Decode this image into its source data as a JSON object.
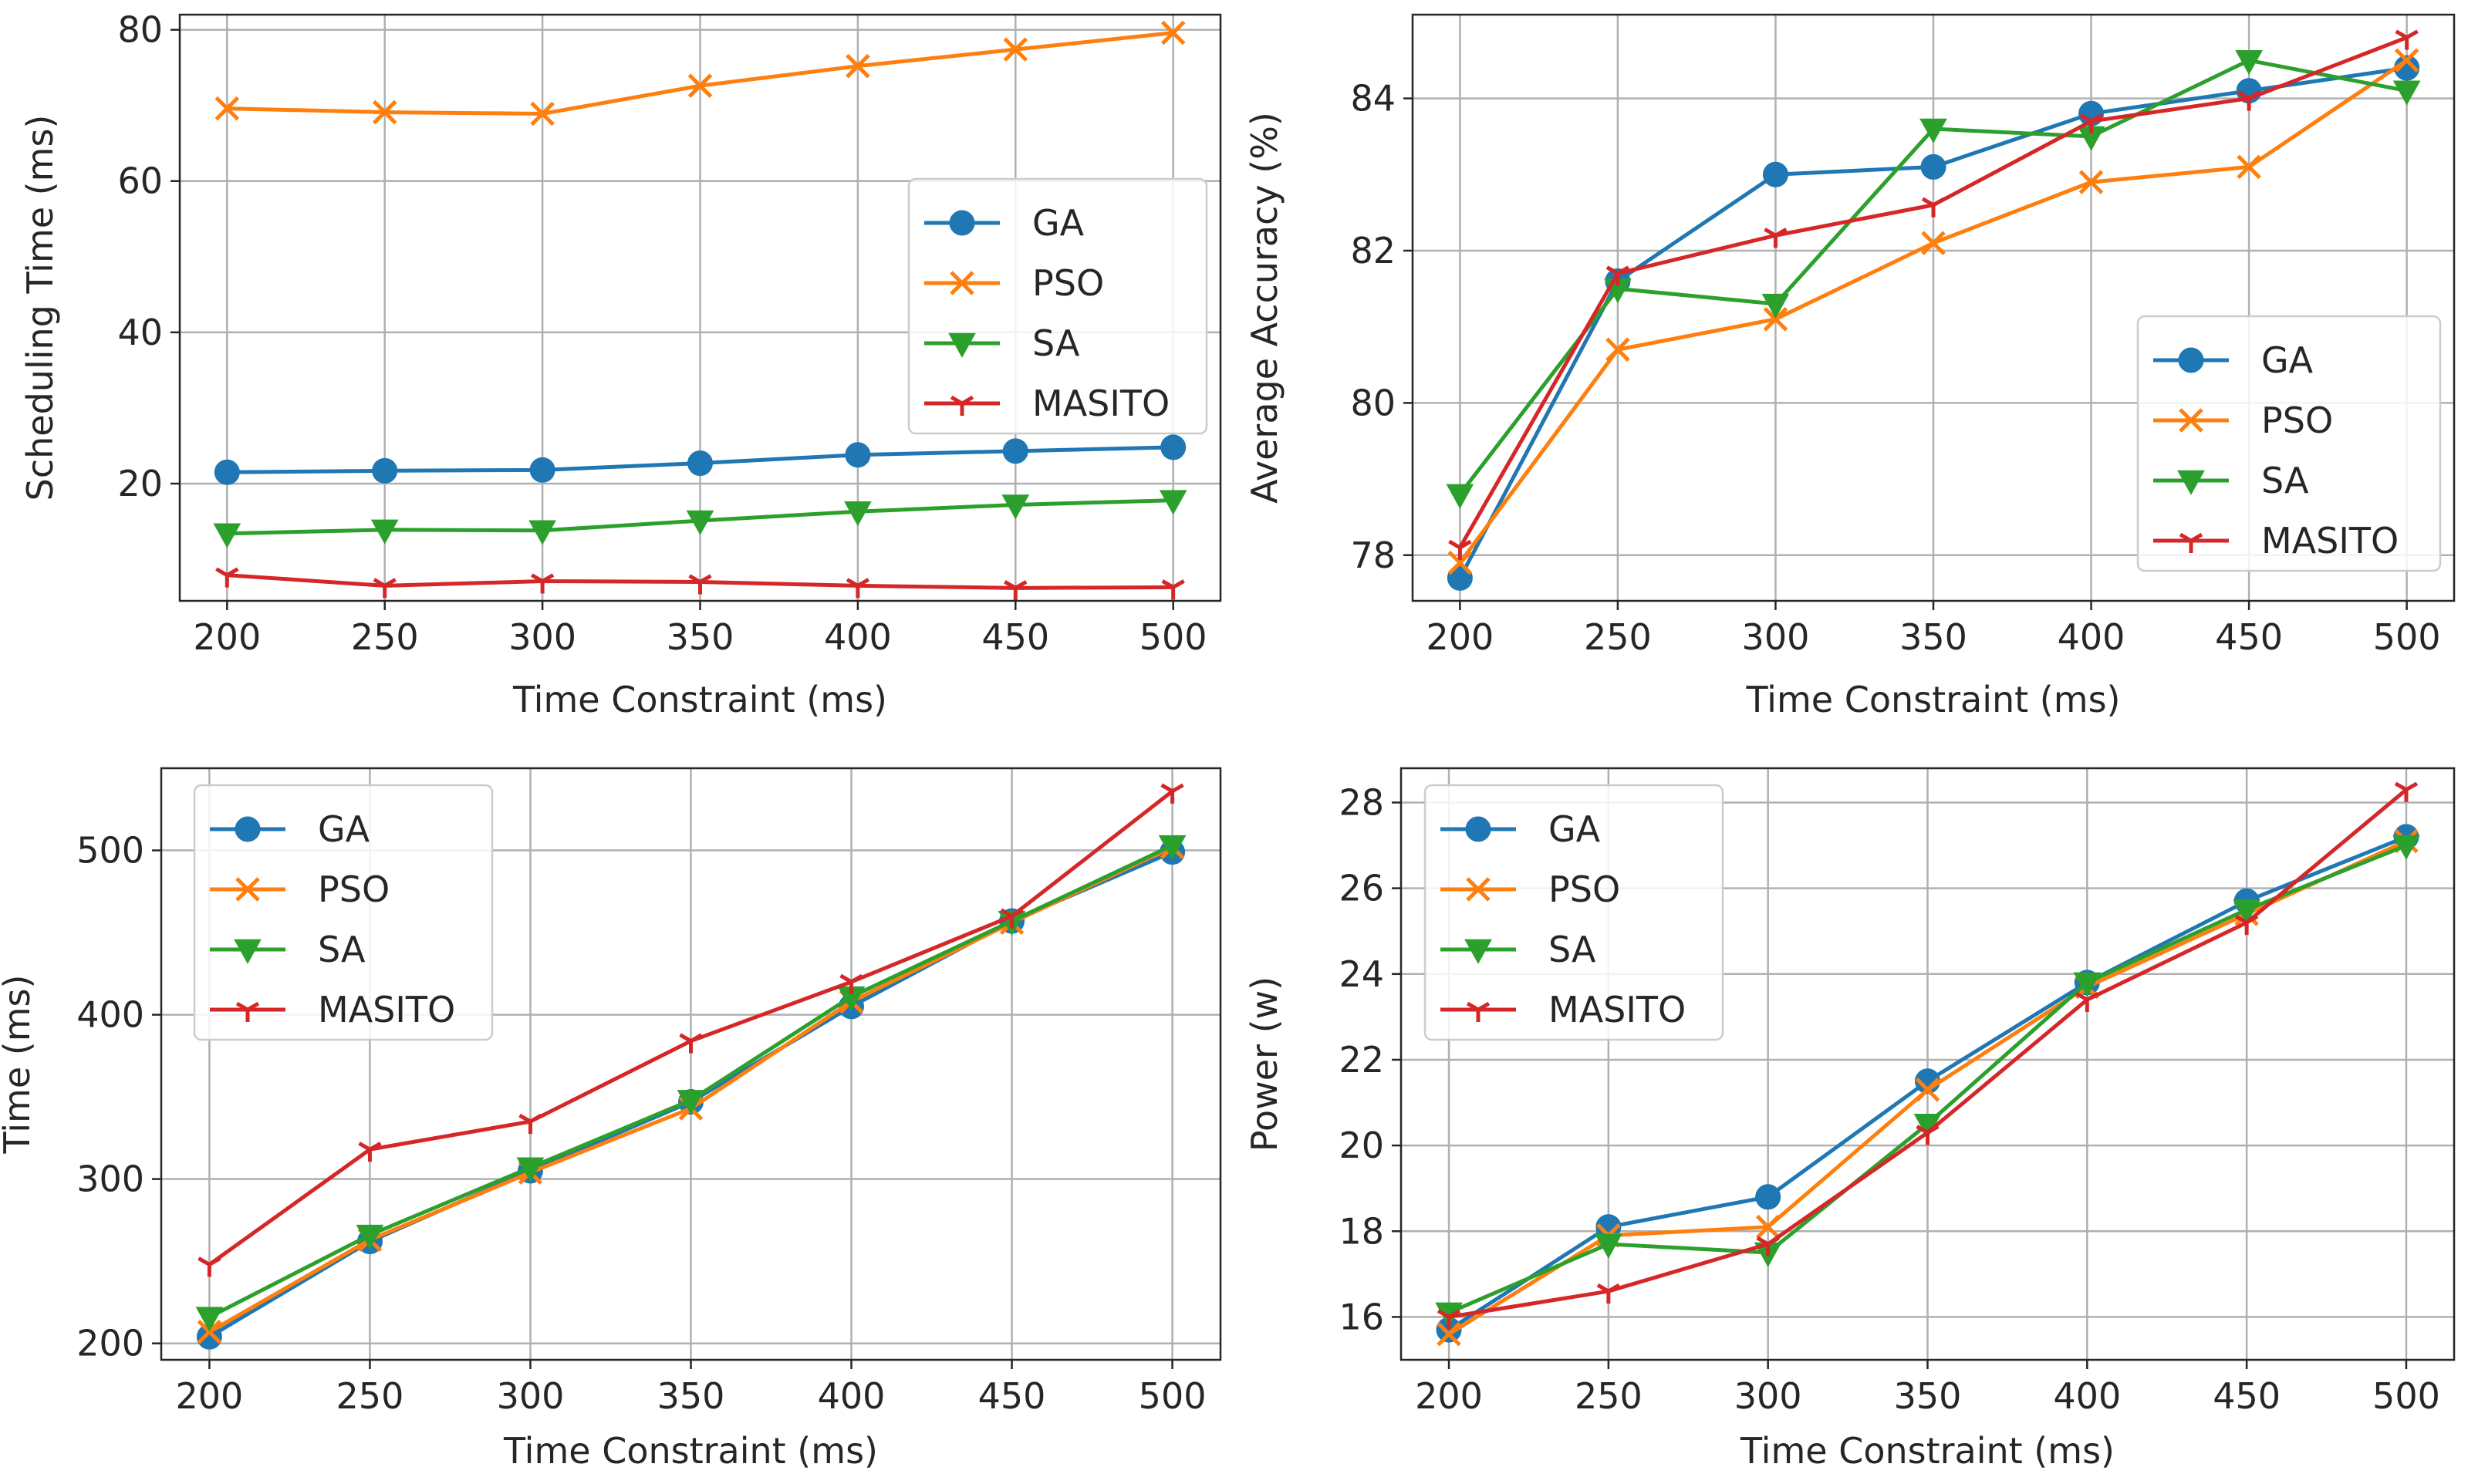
{
  "chart_data": [
    {
      "type": "line",
      "id": "scheduling-time",
      "title": "",
      "xlabel": "Time Constraint (ms)",
      "ylabel": "Scheduling Time (ms)",
      "x": [
        200,
        250,
        300,
        350,
        400,
        450,
        500
      ],
      "xlim": [
        185,
        515
      ],
      "ylim": [
        4.5,
        82
      ],
      "xticks": [
        200,
        250,
        300,
        350,
        400,
        450,
        500
      ],
      "yticks": [
        20,
        40,
        60,
        80
      ],
      "grid": true,
      "legend_position": "center-right",
      "series": [
        {
          "name": "GA",
          "values": [
            21.5,
            21.7,
            21.8,
            22.7,
            23.8,
            24.3,
            24.8
          ]
        },
        {
          "name": "PSO",
          "values": [
            69.6,
            69.1,
            68.9,
            72.6,
            75.2,
            77.4,
            79.6
          ]
        },
        {
          "name": "SA",
          "values": [
            13.4,
            13.9,
            13.8,
            15.1,
            16.3,
            17.2,
            17.8
          ]
        },
        {
          "name": "MASITO",
          "values": [
            7.9,
            6.5,
            7.1,
            7.0,
            6.5,
            6.2,
            6.3
          ]
        }
      ]
    },
    {
      "type": "line",
      "id": "average-accuracy",
      "title": "",
      "xlabel": "Time Constraint (ms)",
      "ylabel": "Average Accuracy (%)",
      "x": [
        200,
        250,
        300,
        350,
        400,
        450,
        500
      ],
      "xlim": [
        185,
        515
      ],
      "ylim": [
        77.4,
        85.1
      ],
      "xticks": [
        200,
        250,
        300,
        350,
        400,
        450,
        500
      ],
      "yticks": [
        78,
        80,
        82,
        84
      ],
      "grid": true,
      "legend_position": "lower-right",
      "series": [
        {
          "name": "GA",
          "values": [
            77.7,
            81.6,
            83.0,
            83.1,
            83.8,
            84.1,
            84.4
          ]
        },
        {
          "name": "PSO",
          "values": [
            77.9,
            80.7,
            81.1,
            82.1,
            82.9,
            83.1,
            84.5
          ]
        },
        {
          "name": "SA",
          "values": [
            78.8,
            81.5,
            81.3,
            83.6,
            83.5,
            84.5,
            84.1
          ]
        },
        {
          "name": "MASITO",
          "values": [
            78.1,
            81.7,
            82.2,
            82.6,
            83.7,
            84.0,
            84.8
          ]
        }
      ]
    },
    {
      "type": "line",
      "id": "time",
      "title": "",
      "xlabel": "Time Constraint (ms)",
      "ylabel": "Time (ms)",
      "x": [
        200,
        250,
        300,
        350,
        400,
        450,
        500
      ],
      "xlim": [
        185,
        515
      ],
      "ylim": [
        190,
        550
      ],
      "xticks": [
        200,
        250,
        300,
        350,
        400,
        450,
        500
      ],
      "yticks": [
        200,
        300,
        400,
        500
      ],
      "grid": true,
      "legend_position": "upper-left",
      "series": [
        {
          "name": "GA",
          "values": [
            204,
            262,
            305,
            347,
            405,
            457,
            499
          ]
        },
        {
          "name": "PSO",
          "values": [
            207,
            263,
            304,
            343,
            408,
            456,
            502
          ]
        },
        {
          "name": "SA",
          "values": [
            216,
            266,
            307,
            348,
            411,
            457,
            503
          ]
        },
        {
          "name": "MASITO",
          "values": [
            248,
            318,
            335,
            384,
            420,
            460,
            536
          ]
        }
      ]
    },
    {
      "type": "line",
      "id": "power",
      "title": "",
      "xlabel": "Time Constraint (ms)",
      "ylabel": "Power (w)",
      "x": [
        200,
        250,
        300,
        350,
        400,
        450,
        500
      ],
      "xlim": [
        185,
        515
      ],
      "ylim": [
        15.0,
        28.8
      ],
      "xticks": [
        200,
        250,
        300,
        350,
        400,
        450,
        500
      ],
      "yticks": [
        16,
        18,
        20,
        22,
        24,
        26,
        28
      ],
      "grid": true,
      "legend_position": "upper-left",
      "series": [
        {
          "name": "GA",
          "values": [
            15.7,
            18.1,
            18.8,
            21.5,
            23.8,
            25.7,
            27.2
          ]
        },
        {
          "name": "PSO",
          "values": [
            15.6,
            17.9,
            18.1,
            21.3,
            23.7,
            25.4,
            27.1
          ]
        },
        {
          "name": "SA",
          "values": [
            16.1,
            17.7,
            17.5,
            20.5,
            23.8,
            25.5,
            27.0
          ]
        },
        {
          "name": "MASITO",
          "values": [
            16.0,
            16.6,
            17.7,
            20.3,
            23.4,
            25.2,
            28.3
          ]
        }
      ]
    }
  ],
  "colors": {
    "GA": "#1f77b4",
    "PSO": "#ff7f0e",
    "SA": "#2ca02c",
    "MASITO": "#d62728",
    "grid": "#b0b0b0",
    "axis": "#262626",
    "legend_border": "#cccccc"
  },
  "markers": {
    "GA": "circle",
    "PSO": "x",
    "SA": "triangle-down",
    "MASITO": "tri-down"
  }
}
